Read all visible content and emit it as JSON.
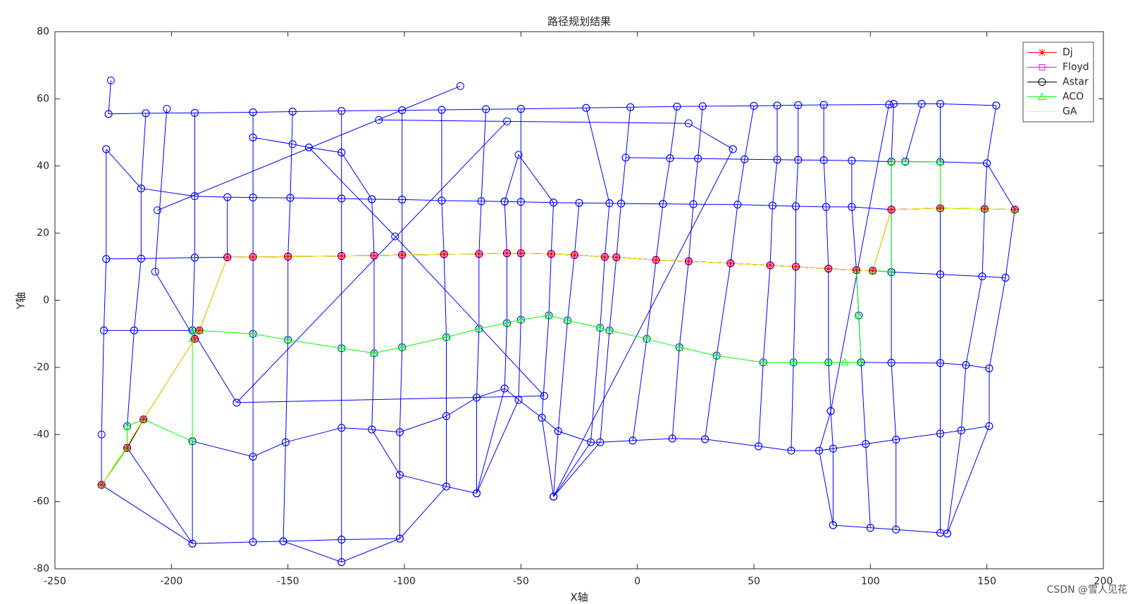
{
  "chart_data": {
    "type": "line",
    "title": "路径规划结果",
    "x_label": "X轴",
    "y_label": "Y轴",
    "xlim": [
      -250,
      200
    ],
    "ylim": [
      -80,
      80
    ],
    "xticks": [
      -250,
      -200,
      -150,
      -100,
      -50,
      0,
      50,
      100,
      150,
      200
    ],
    "yticks": [
      -80,
      -60,
      -40,
      -20,
      0,
      20,
      40,
      60,
      80
    ],
    "legend_position": "upper-right",
    "network_color": "#0000ff",
    "network": [
      {
        "x": [
          -227,
          -211,
          -190,
          -165,
          -148,
          -127,
          -101,
          -84,
          -65,
          -50,
          -22,
          -3,
          17,
          28,
          50,
          60,
          69,
          80,
          108,
          110,
          122,
          130,
          154
        ],
        "y": [
          55.5,
          55.7,
          55.8,
          56,
          56.2,
          56.4,
          56.6,
          56.7,
          56.9,
          57,
          57.3,
          57.5,
          57.7,
          57.8,
          57.9,
          58,
          58.1,
          58.2,
          58.3,
          58.5,
          58.5,
          58.5,
          58
        ]
      },
      {
        "x": [
          -5,
          14,
          26,
          46,
          60,
          69,
          80,
          92,
          109,
          115,
          130,
          150,
          162
        ],
        "y": [
          42.5,
          42.3,
          42.2,
          42,
          41.9,
          41.8,
          41.7,
          41.6,
          41.3,
          41.3,
          41.2,
          40.8,
          27
        ]
      },
      {
        "x": [
          -228,
          -213,
          -190,
          -176,
          -165,
          -149,
          -127,
          -114,
          -101,
          -84,
          -67,
          -57,
          -50,
          -36,
          -25,
          -12,
          -7,
          11,
          24,
          43,
          58,
          68,
          81,
          92,
          109
        ],
        "y": [
          45,
          33.3,
          31,
          30.7,
          30.6,
          30.5,
          30.3,
          30.1,
          30,
          29.7,
          29.5,
          29.4,
          29.3,
          29.1,
          29,
          28.9,
          28.8,
          28.7,
          28.6,
          28.5,
          28.2,
          28,
          27.8,
          27.8,
          27
        ]
      },
      {
        "x": [
          -228,
          -213,
          -190,
          -176
        ],
        "y": [
          12.3,
          12.4,
          12.7,
          12.8
        ]
      },
      {
        "x": [
          101,
          109,
          130,
          148,
          158
        ],
        "y": [
          8.8,
          8.4,
          7.7,
          7.1,
          6.7
        ]
      },
      {
        "x": [
          -229,
          -216,
          -191
        ],
        "y": [
          -9,
          -9,
          -9
        ]
      },
      {
        "x": [
          96,
          109,
          130,
          141,
          151
        ],
        "y": [
          -18.5,
          -18.6,
          -18.7,
          -19.3,
          -20.3
        ]
      },
      {
        "x": [
          -191,
          -165,
          -151,
          -127,
          -114,
          -102,
          -82,
          -69,
          -57,
          -51,
          -41,
          -34,
          -20,
          -16,
          -2,
          15,
          29,
          52,
          66,
          78,
          84,
          98,
          111,
          130,
          139,
          151
        ],
        "y": [
          -42,
          -46.6,
          -42.3,
          -38,
          -38.5,
          -39.3,
          -34.5,
          -29,
          -26.3,
          -29.7,
          -35,
          -39,
          -42.3,
          -42.3,
          -41.8,
          -41.2,
          -41.4,
          -43.5,
          -44.8,
          -44.8,
          -44.2,
          -42.8,
          -41.5,
          -39.7,
          -38.8,
          -37.5
        ]
      },
      {
        "x": [
          -230,
          -191,
          -165,
          -152,
          -127,
          -102,
          -82,
          -69
        ],
        "y": [
          -55,
          -72.5,
          -72,
          -71.8,
          -71.3,
          -71,
          -55.5,
          -57.5
        ]
      },
      {
        "x": [
          -152,
          -127,
          -102
        ],
        "y": [
          -71.8,
          -78,
          -71
        ]
      },
      {
        "x": [
          84,
          100,
          111,
          130,
          133
        ],
        "y": [
          -67,
          -67.8,
          -68.3,
          -69.3,
          -69.5
        ]
      },
      {
        "x": [
          -226,
          -227
        ],
        "y": [
          65.5,
          55.5
        ]
      },
      {
        "x": [
          -228,
          -228,
          -229,
          -230,
          -230
        ],
        "y": [
          45,
          12.3,
          -9,
          -40,
          -55
        ]
      },
      {
        "x": [
          -211,
          -213,
          -213,
          -216,
          -219
        ],
        "y": [
          55.7,
          33.3,
          12.4,
          -9,
          -37.5
        ]
      },
      {
        "x": [
          -202,
          -207,
          -190
        ],
        "y": [
          57,
          8.5,
          -11.5
        ]
      },
      {
        "x": [
          -206,
          -76
        ],
        "y": [
          26.8,
          63.8
        ]
      },
      {
        "x": [
          -190,
          -190,
          -190,
          -191
        ],
        "y": [
          55.8,
          31,
          12.7,
          -9
        ]
      },
      {
        "x": [
          -191,
          -172,
          -40
        ],
        "y": [
          -9,
          -30.5,
          -28.5
        ]
      },
      {
        "x": [
          -191,
          -191
        ],
        "y": [
          -42,
          -72.5
        ]
      },
      {
        "x": [
          -219,
          -191
        ],
        "y": [
          -44,
          -72.5
        ]
      },
      {
        "x": [
          -176,
          -176
        ],
        "y": [
          30.7,
          12.8
        ]
      },
      {
        "x": [
          -165,
          -165,
          -165,
          -165,
          -165,
          -165,
          -165
        ],
        "y": [
          56,
          48.5,
          30.6,
          12.9,
          -10,
          -46.6,
          -72
        ]
      },
      {
        "x": [
          -165,
          -148,
          -141,
          -127,
          -114
        ],
        "y": [
          48.5,
          46.5,
          45.5,
          44,
          30.1
        ]
      },
      {
        "x": [
          -148,
          -149,
          -150,
          -150,
          -151,
          -152
        ],
        "y": [
          56.2,
          30.5,
          13,
          -11.8,
          -42.3,
          -71.8
        ]
      },
      {
        "x": [
          -127,
          -127,
          -127,
          -127,
          -127,
          -127,
          -127,
          -127
        ],
        "y": [
          56.4,
          44,
          30.3,
          13.2,
          -14.3,
          -38,
          -71.3,
          -78
        ]
      },
      {
        "x": [
          -141,
          -104,
          -40
        ],
        "y": [
          45.5,
          19,
          -28.5
        ]
      },
      {
        "x": [
          -172,
          -56
        ],
        "y": [
          -30.5,
          53.3
        ]
      },
      {
        "x": [
          -111,
          22,
          41
        ],
        "y": [
          53.7,
          52.7,
          45
        ]
      },
      {
        "x": [
          41,
          -36
        ],
        "y": [
          45,
          -58.5
        ]
      },
      {
        "x": [
          -114,
          -113,
          -113,
          -114,
          -102,
          -82
        ],
        "y": [
          30.1,
          13.3,
          -15.8,
          -38.5,
          -52,
          -55.5
        ]
      },
      {
        "x": [
          -101,
          -101,
          -101,
          -101,
          -102,
          -102,
          -102
        ],
        "y": [
          56.6,
          30,
          13.5,
          -14,
          -39.3,
          -52,
          -71
        ]
      },
      {
        "x": [
          -84,
          -84,
          -83,
          -82,
          -82,
          -82
        ],
        "y": [
          56.7,
          29.7,
          13.7,
          -11,
          -34.5,
          -55.5
        ]
      },
      {
        "x": [
          -65,
          -67,
          -68,
          -68,
          -69,
          -69
        ],
        "y": [
          56.9,
          29.5,
          13.8,
          -8.5,
          -29,
          -57.5
        ]
      },
      {
        "x": [
          -57,
          -56,
          -56,
          -57,
          -69
        ],
        "y": [
          29.4,
          14,
          -6.8,
          -26.3,
          -57.5
        ]
      },
      {
        "x": [
          -50,
          -50,
          -50,
          -50,
          -51,
          -69
        ],
        "y": [
          57,
          29.3,
          14,
          -5.8,
          -29.7,
          -57.5
        ]
      },
      {
        "x": [
          -57,
          -51,
          -36
        ],
        "y": [
          29.4,
          43.3,
          29.1
        ]
      },
      {
        "x": [
          -36,
          -37,
          -38,
          -41,
          -36
        ],
        "y": [
          29.1,
          13.8,
          -4.5,
          -35,
          -58.5
        ]
      },
      {
        "x": [
          -25,
          -27,
          -30,
          -34,
          -36
        ],
        "y": [
          29,
          13.5,
          -6,
          -39,
          -58.5
        ]
      },
      {
        "x": [
          -22,
          -12,
          -14,
          -16,
          -20,
          -36
        ],
        "y": [
          57.3,
          28.9,
          12.9,
          -8.2,
          -42.3,
          -58.5
        ]
      },
      {
        "x": [
          -3,
          -5,
          -7,
          -9,
          -12,
          -16,
          -36
        ],
        "y": [
          57.5,
          42.5,
          28.8,
          12.8,
          -9,
          -42.3,
          -58.5
        ]
      },
      {
        "x": [
          17,
          14,
          11,
          8,
          4,
          -2
        ],
        "y": [
          57.7,
          42.3,
          28.7,
          12,
          -11.5,
          -41.8
        ]
      },
      {
        "x": [
          28,
          26,
          24,
          22,
          18,
          15
        ],
        "y": [
          57.8,
          42.2,
          28.6,
          11.6,
          -14,
          -41.2
        ]
      },
      {
        "x": [
          50,
          46,
          43,
          40,
          34,
          29
        ],
        "y": [
          57.9,
          42,
          28.5,
          11,
          -16.5,
          -41.4
        ]
      },
      {
        "x": [
          60,
          60,
          58,
          57,
          54,
          52
        ],
        "y": [
          58,
          41.9,
          28.2,
          10.4,
          -18.5,
          -43.5
        ]
      },
      {
        "x": [
          69,
          69,
          68,
          68,
          67,
          66
        ],
        "y": [
          58.1,
          41.8,
          28,
          10,
          -18.5,
          -44.8
        ]
      },
      {
        "x": [
          80,
          80,
          81,
          82,
          82,
          83,
          84,
          84
        ],
        "y": [
          58.2,
          41.7,
          27.8,
          9.4,
          -18.5,
          -33,
          -44.2,
          -67
        ]
      },
      {
        "x": [
          108,
          83,
          78,
          84
        ],
        "y": [
          58.3,
          -33,
          -44.8,
          -67
        ]
      },
      {
        "x": [
          92,
          92,
          94,
          95,
          96,
          98,
          100
        ],
        "y": [
          41.6,
          27.8,
          9,
          -4.5,
          -18.5,
          -42.8,
          -67.8
        ]
      },
      {
        "x": [
          110,
          109,
          109,
          109,
          109,
          111,
          111
        ],
        "y": [
          58.5,
          41.3,
          27,
          8.4,
          -18.6,
          -41.5,
          -68.3
        ]
      },
      {
        "x": [
          122,
          115
        ],
        "y": [
          58.5,
          41.3
        ]
      },
      {
        "x": [
          130,
          130,
          130,
          130,
          130,
          130,
          130
        ],
        "y": [
          58.5,
          41.2,
          27.4,
          7.7,
          -18.7,
          -39.7,
          -69.3
        ]
      },
      {
        "x": [
          154,
          150,
          149,
          148,
          141,
          139,
          133
        ],
        "y": [
          58,
          40.8,
          27.2,
          7.1,
          -19.3,
          -38.8,
          -69.5
        ]
      },
      {
        "x": [
          162,
          158,
          151,
          151,
          133
        ],
        "y": [
          27,
          6.7,
          -20.3,
          -37.5,
          -69.5
        ]
      }
    ],
    "series": [
      {
        "name": "Dj",
        "color": "#ff0000",
        "marker": "star",
        "x": [
          -230,
          -219,
          -212,
          -190,
          -188,
          -176,
          -165,
          -150,
          -127,
          -113,
          -101,
          -83,
          -68,
          -56,
          -50,
          -37,
          -27,
          -14,
          -9,
          8,
          22,
          40,
          57,
          68,
          82,
          94,
          101,
          109,
          130,
          149,
          162
        ],
        "y": [
          -55,
          -44,
          -35.5,
          -11.5,
          -9,
          12.8,
          12.9,
          13,
          13.2,
          13.3,
          13.5,
          13.7,
          13.8,
          14,
          14,
          13.8,
          13.5,
          12.9,
          12.8,
          12,
          11.6,
          11,
          10.4,
          10,
          9.4,
          9,
          8.8,
          27,
          27.4,
          27.2,
          27
        ]
      },
      {
        "name": "Floyd",
        "color": "#ff00ff",
        "marker": "square",
        "x": [
          -230,
          -219,
          -212,
          -190,
          -188,
          -176,
          -165,
          -150,
          -127,
          -113,
          -101,
          -83,
          -68,
          -56,
          -50,
          -37,
          -27,
          -14,
          -9,
          8,
          22,
          40,
          57,
          68,
          82,
          94,
          101,
          109,
          130,
          149,
          162
        ],
        "y": [
          -55,
          -44,
          -35.5,
          -11.5,
          -9,
          12.8,
          12.9,
          13,
          13.2,
          13.3,
          13.5,
          13.7,
          13.8,
          14,
          14,
          13.8,
          13.5,
          12.9,
          12.8,
          12,
          11.6,
          11,
          10.4,
          10,
          9.4,
          9,
          8.8,
          27,
          27.4,
          27.2,
          27
        ]
      },
      {
        "name": "Astar",
        "color": "#000000",
        "marker": "circle",
        "x": [
          -230,
          -219,
          -212,
          -190,
          -188,
          -176,
          -165,
          -150,
          -127,
          -113,
          -101,
          -83,
          -68,
          -56,
          -50,
          -37,
          -27,
          -14,
          -9,
          8,
          22,
          40,
          57,
          68,
          82,
          94,
          101,
          109,
          130,
          149,
          162
        ],
        "y": [
          -55,
          -44,
          -35.5,
          -11.5,
          -9,
          12.8,
          12.9,
          13,
          13.2,
          13.3,
          13.5,
          13.7,
          13.8,
          14,
          14,
          13.8,
          13.5,
          12.9,
          12.8,
          12,
          11.6,
          11,
          10.4,
          10,
          9.4,
          9,
          8.8,
          27,
          27.4,
          27.2,
          27
        ]
      },
      {
        "name": "ACO",
        "color": "#00ff00",
        "marker": "triangle",
        "x": [
          -230,
          -219,
          -219,
          -212,
          -191,
          -191,
          -191,
          -188,
          -165,
          -150,
          -127,
          -113,
          -101,
          -82,
          -68,
          -56,
          -50,
          -38,
          -30,
          -16,
          -12,
          4,
          18,
          34,
          54,
          67,
          82,
          89,
          96,
          95,
          94,
          101,
          109,
          109,
          115,
          130,
          130,
          149,
          162
        ],
        "y": [
          -55,
          -44,
          -37.5,
          -35.5,
          -42,
          -11.5,
          -9,
          -9,
          -10,
          -11.8,
          -14.3,
          -15.8,
          -14,
          -11,
          -8.5,
          -6.8,
          -5.8,
          -4.5,
          -6,
          -8.2,
          -9,
          -11.5,
          -14,
          -16.5,
          -18.5,
          -18.5,
          -18.5,
          -18.5,
          -18.5,
          -4.5,
          9,
          8.8,
          8.4,
          41.3,
          41.3,
          41.2,
          27.4,
          27.2,
          27
        ]
      },
      {
        "name": "GA",
        "color": "#ffff00",
        "marker": "none",
        "x": [
          -230,
          -212,
          -190,
          -188,
          -176,
          -165,
          -150,
          -127,
          -113,
          -101,
          -83,
          -68,
          -56,
          -50,
          -37,
          -27,
          -14,
          -9,
          8,
          22,
          40,
          57,
          68,
          82,
          94,
          101,
          109,
          130,
          149,
          162
        ],
        "y": [
          -55,
          -35.5,
          -11.5,
          -9,
          12.8,
          12.9,
          13,
          13.2,
          13.3,
          13.5,
          13.7,
          13.8,
          14,
          14,
          13.8,
          13.5,
          12.9,
          12.8,
          12,
          11.6,
          11,
          10.4,
          10,
          9.4,
          9,
          8.8,
          27,
          27.4,
          27.2,
          27
        ]
      }
    ],
    "watermark": "CSDN @雪人见花"
  }
}
